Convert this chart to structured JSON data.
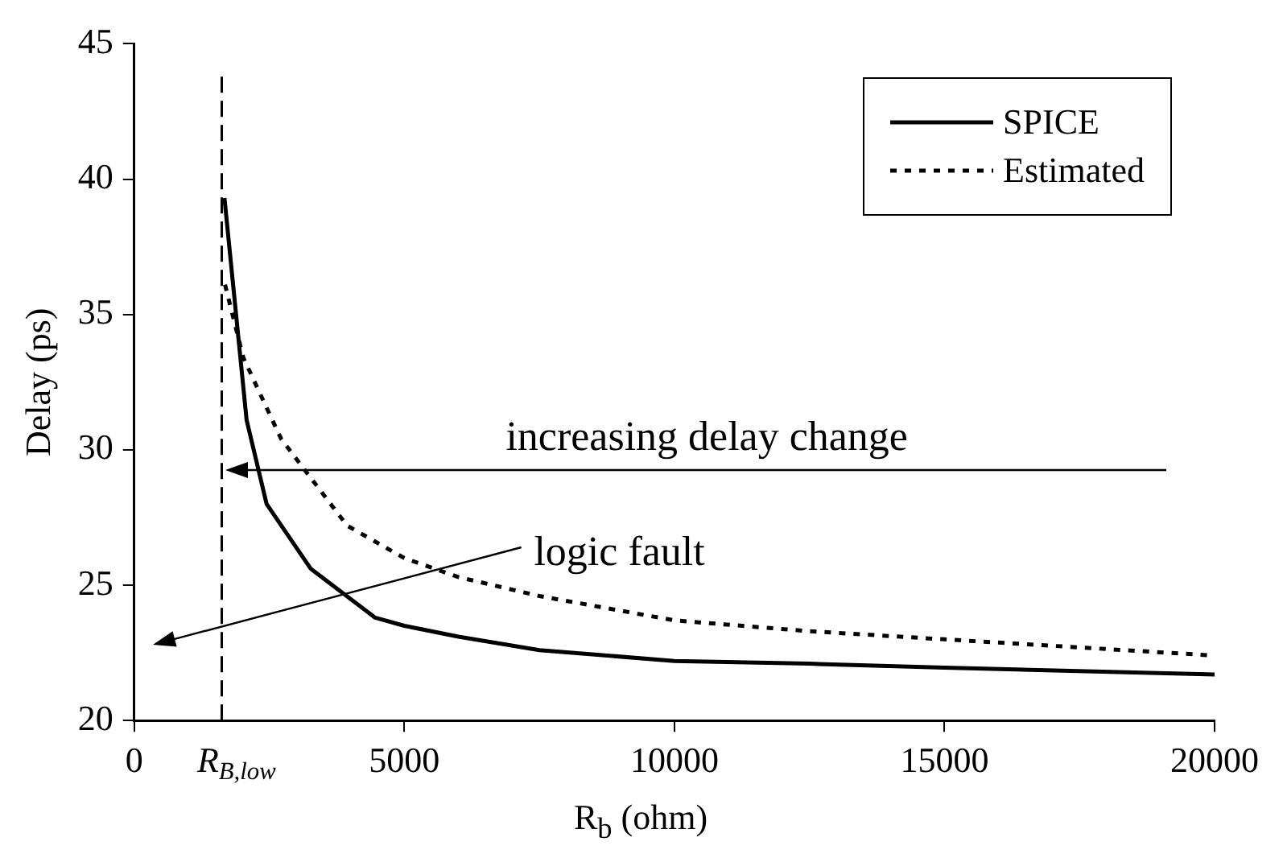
{
  "chart_data": {
    "type": "line",
    "xlabel": "R$_{b}$ (ohm)",
    "ylabel": "Delay (ps)",
    "xlim": [
      0,
      20000
    ],
    "xticks": [
      0,
      5000,
      10000,
      15000,
      20000
    ],
    "ylim": [
      20,
      45
    ],
    "yticks": [
      20,
      25,
      30,
      35,
      40,
      45
    ],
    "grid": false,
    "legend": "top right",
    "marker": "none",
    "series": [
      {
        "name": "SPICE",
        "color": "#000000",
        "line_style": "solid",
        "x": [
          1670,
          2080,
          2450,
          3270,
          4460,
          5000,
          6000,
          7500,
          10000,
          12500,
          15000,
          20000
        ],
        "values": [
          39.3,
          31.1,
          28.0,
          25.6,
          23.8,
          23.5,
          23.1,
          22.6,
          22.2,
          22.1,
          21.95,
          21.7
        ]
      },
      {
        "name": "Estimated",
        "color": "#000000",
        "line_style": "dotted",
        "x": [
          1680,
          2020,
          2720,
          3940,
          5000,
          6000,
          7500,
          10000,
          12500,
          15000,
          20000
        ],
        "values": [
          36.1,
          33.4,
          30.4,
          27.2,
          26.0,
          25.3,
          24.6,
          23.7,
          23.3,
          23.0,
          22.4
        ]
      }
    ],
    "ref_lines": [
      {
        "axis": "x",
        "value": 1620,
        "label": "R$_{B,low}$",
        "line_style": "dashed",
        "color": "#000000"
      }
    ],
    "annotations": [
      "increasing delay change",
      "logic fault"
    ]
  }
}
